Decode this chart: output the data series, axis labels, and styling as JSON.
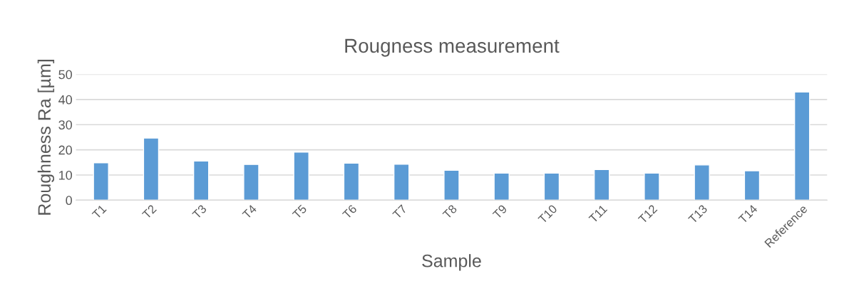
{
  "chart_data": {
    "type": "bar",
    "title": "Rougness measurement",
    "xlabel": "Sample",
    "ylabel": "Roughness Ra [µm]",
    "categories": [
      "T1",
      "T2",
      "T3",
      "T4",
      "T5",
      "T6",
      "T7",
      "T8",
      "T9",
      "T10",
      "T11",
      "T12",
      "T13",
      "T14",
      "Reference"
    ],
    "values": [
      14.9,
      24.7,
      15.6,
      14.2,
      19.1,
      14.7,
      14.3,
      11.9,
      10.8,
      10.8,
      12.2,
      10.8,
      14.0,
      11.7,
      43.0
    ],
    "color": "#5b9bd5",
    "ylim": [
      0,
      50
    ],
    "yticks": [
      0,
      10,
      20,
      30,
      40,
      50
    ],
    "grid": "y"
  }
}
